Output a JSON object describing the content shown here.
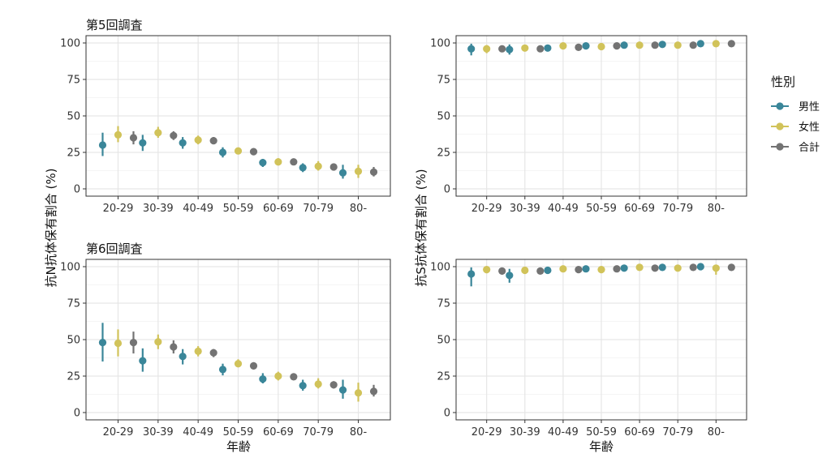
{
  "chart_data": {
    "type": "scatter",
    "x_label": "年齢",
    "y_label_left": "抗N抗体保有割合 (%)",
    "y_label_right": "抗S抗体保有割合 (%)",
    "categories": [
      "20-29",
      "30-39",
      "40-49",
      "50-59",
      "60-69",
      "70-79",
      "80-"
    ],
    "y_ticks": [
      "0",
      "25",
      "50",
      "75",
      "100"
    ],
    "ylim": [
      0,
      100
    ],
    "legend": {
      "title": "性別",
      "placement": "right",
      "items": [
        {
          "label": "男性",
          "color": "#3a8699"
        },
        {
          "label": "女性",
          "color": "#d1c35a"
        },
        {
          "label": "合計",
          "color": "#737373"
        }
      ]
    },
    "panels": [
      {
        "title": "第5回調査",
        "antibody": "N",
        "series": [
          {
            "name": "男性",
            "values": [
              30,
              31.5,
              31.5,
              25,
              18,
              14.5,
              11
            ],
            "lower": [
              22.5,
              26,
              27.5,
              21.5,
              15,
              11.5,
              7
            ],
            "upper": [
              38.5,
              37,
              35.5,
              28.5,
              20.5,
              17.5,
              16.5
            ]
          },
          {
            "name": "女性",
            "values": [
              37,
              38.5,
              33.5,
              26,
              18.5,
              15.5,
              12
            ],
            "lower": [
              32,
              35,
              30.5,
              24,
              16,
              12.5,
              7.5
            ],
            "upper": [
              43,
              42.5,
              36.5,
              28,
              21,
              19,
              16.5
            ]
          },
          {
            "name": "合計",
            "values": [
              35,
              36.5,
              33,
              25.5,
              18.5,
              15,
              11.5
            ],
            "lower": [
              30.5,
              33.5,
              31,
              24,
              16.5,
              13,
              8.5
            ],
            "upper": [
              39.5,
              39.5,
              35.5,
              27.5,
              20,
              17,
              15
            ]
          }
        ]
      },
      {
        "title": "",
        "antibody": "S",
        "series": [
          {
            "name": "男性",
            "values": [
              96,
              95.5,
              96.5,
              98,
              98.5,
              99,
              99.5
            ],
            "lower": [
              91.5,
              92,
              95,
              97,
              98,
              98.5,
              99
            ],
            "upper": [
              99.5,
              99,
              98,
              99,
              99.5,
              99.5,
              100
            ]
          },
          {
            "name": "女性",
            "values": [
              96,
              96.5,
              98,
              97.5,
              98.5,
              98.5,
              99.5
            ],
            "lower": [
              93,
              94.5,
              97,
              96.5,
              98,
              97.5,
              98.5
            ],
            "upper": [
              98.5,
              98.5,
              99,
              98.5,
              99.5,
              99.5,
              100
            ]
          },
          {
            "name": "合計",
            "values": [
              96,
              96,
              97,
              98,
              98.5,
              98.5,
              99.5
            ],
            "lower": [
              94,
              94.5,
              96.5,
              97.5,
              98,
              98,
              99
            ],
            "upper": [
              98,
              97.5,
              98,
              98.5,
              99,
              99,
              100
            ]
          }
        ]
      },
      {
        "title": "第6回調査",
        "antibody": "N",
        "series": [
          {
            "name": "男性",
            "values": [
              48,
              35.5,
              38.5,
              29.5,
              23,
              18.5,
              15.5
            ],
            "lower": [
              35,
              28,
              33,
              25.5,
              20,
              15,
              9.5
            ],
            "upper": [
              61.5,
              44,
              43.5,
              33.5,
              27,
              22.5,
              22.5
            ]
          },
          {
            "name": "女性",
            "values": [
              47.5,
              48.5,
              42,
              33.5,
              25,
              19.5,
              13.5
            ],
            "lower": [
              38.5,
              43.5,
              38.5,
              31,
              22,
              16.5,
              7.5
            ],
            "upper": [
              57,
              53.5,
              45.5,
              36.5,
              28,
              23.5,
              20.5
            ]
          },
          {
            "name": "合計",
            "values": [
              48,
              45,
              41,
              32,
              24.5,
              19,
              14.5
            ],
            "lower": [
              40.5,
              40.5,
              38,
              29.5,
              22.5,
              16.5,
              11
            ],
            "upper": [
              55.5,
              49.5,
              43.5,
              34.5,
              26.5,
              21.5,
              19
            ]
          }
        ]
      },
      {
        "title": "",
        "antibody": "S",
        "series": [
          {
            "name": "男性",
            "values": [
              95,
              94,
              97.5,
              98.5,
              99,
              99.5,
              100
            ],
            "lower": [
              86.5,
              89,
              96,
              97.5,
              98,
              98.5,
              98.5
            ],
            "upper": [
              99.5,
              98.5,
              99,
              99.5,
              99.5,
              100,
              100
            ]
          },
          {
            "name": "女性",
            "values": [
              98,
              97.5,
              98.5,
              98,
              99.5,
              99,
              99
            ],
            "lower": [
              95.5,
              96,
              97.5,
              96.5,
              98.5,
              97.5,
              94.5
            ],
            "upper": [
              100,
              99.5,
              99.5,
              99.5,
              100,
              99.5,
              100
            ]
          },
          {
            "name": "合計",
            "values": [
              97,
              97,
              98,
              98.5,
              99,
              99.5,
              99.5
            ],
            "lower": [
              94.5,
              95.5,
              97.5,
              98,
              98.5,
              98.5,
              98.5
            ],
            "upper": [
              99,
              98.5,
              99,
              99,
              99.5,
              100,
              100
            ]
          }
        ]
      }
    ]
  }
}
